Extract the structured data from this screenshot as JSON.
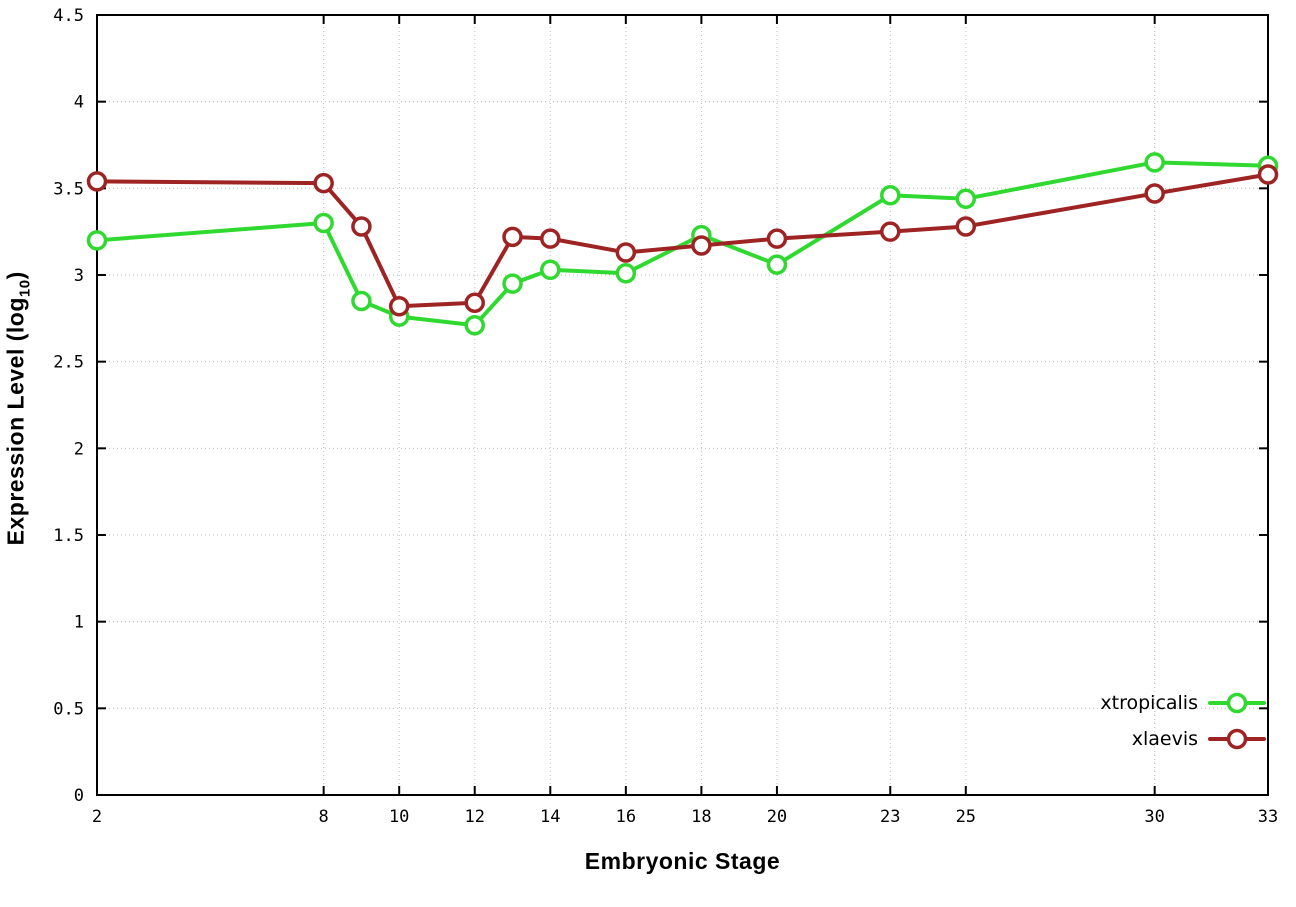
{
  "chart_data": {
    "type": "line",
    "title": "",
    "xlabel": "Embryonic Stage",
    "ylabel": {
      "prefix": "Expression Level (log",
      "sub": "10",
      "suffix": ")"
    },
    "xlim": [
      2,
      33
    ],
    "ylim": [
      0,
      4.5
    ],
    "xticks": [
      2,
      8,
      10,
      12,
      14,
      16,
      18,
      20,
      23,
      25,
      30,
      33
    ],
    "yticks": [
      0,
      0.5,
      1,
      1.5,
      2,
      2.5,
      3,
      3.5,
      4,
      4.5
    ],
    "grid": true,
    "legend_position": "bottom-right",
    "x": [
      2,
      8,
      9,
      10,
      12,
      13,
      14,
      16,
      18,
      20,
      23,
      25,
      30,
      33
    ],
    "series": [
      {
        "name": "xtropicalis",
        "color": "#30d930",
        "values": [
          3.2,
          3.3,
          2.85,
          2.76,
          2.71,
          2.95,
          3.03,
          3.01,
          3.23,
          3.06,
          3.46,
          3.44,
          3.65,
          3.63
        ]
      },
      {
        "name": "xlaevis",
        "color": "#9e2424",
        "values": [
          3.54,
          3.53,
          3.28,
          2.82,
          2.84,
          3.22,
          3.21,
          3.13,
          3.17,
          3.21,
          3.25,
          3.28,
          3.47,
          3.58
        ]
      }
    ],
    "colors": {
      "grid": "#bdbdbd",
      "axis": "#000000",
      "background": "#ffffff"
    }
  }
}
